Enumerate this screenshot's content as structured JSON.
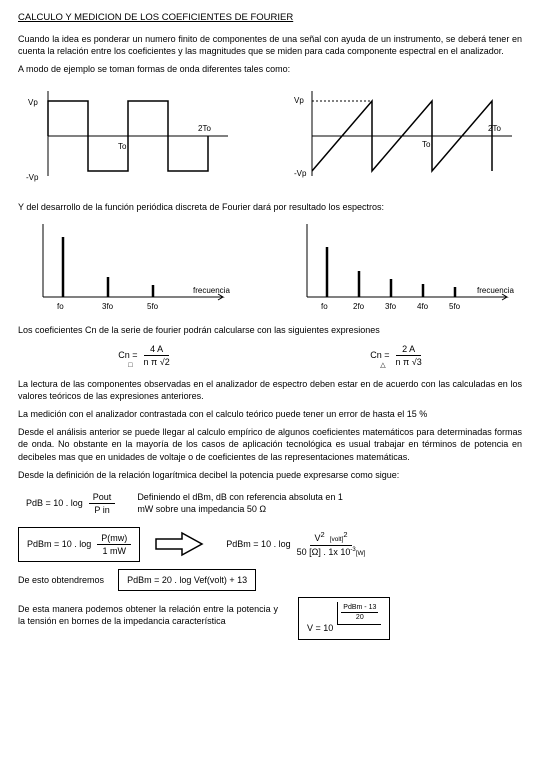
{
  "title": "CALCULO Y MEDICION DE LOS COEFICIENTES DE FOURIER",
  "intro": "Cuando la idea es ponderar un numero finito de componentes de una señal con ayuda de un instrumento, se deberá tener en cuenta la relación entre los coeficientes y las magnitudes que se miden para cada componente espectral en el analizador.",
  "intro2": "A modo de ejemplo se toman formas de onda diferentes tales como:",
  "wave": {
    "vp": "Vp",
    "nvp": "-Vp",
    "to": "To",
    "tto": "2To"
  },
  "p2": "Y del desarrollo de la función periódica discreta de Fourier dará por resultado los espectros:",
  "spec": {
    "freq": "frecuencia",
    "left_ticks": [
      "fo",
      "3fo",
      "5fo"
    ],
    "right_ticks": [
      "fo",
      "2fo",
      "3fo",
      "4fo",
      "5fo"
    ],
    "left_heights": [
      60,
      20,
      12
    ],
    "right_heights": [
      50,
      26,
      18,
      13,
      10
    ]
  },
  "p3": "Los coeficientes Cn de la serie de fourier podrán calcularse con las siguientes expresiones",
  "eq1": {
    "lhs": "Cn =",
    "num": "4 A",
    "den": "n π √2",
    "sub": "□",
    "root": "'"
  },
  "eq2": {
    "lhs": "Cn =",
    "num": "2 A",
    "den": "n π √3",
    "sub": "△",
    "root": "'"
  },
  "p4": "La lectura de las componentes observadas en el analizador de espectro deben estar en de acuerdo con las calculadas en los valores teóricos de las expresiones anteriores.",
  "p5": "La medición con el analizador contrastada con el calculo teórico puede tener un error de hasta el 15 %",
  "p6": "Desde el análisis anterior se puede llegar al calculo empírico de algunos coeficientes matemáticos para determinadas formas de onda. No obstante en la mayoría de los casos de aplicación tecnológica es usual trabajar en términos de potencia en decibeles mas que en unidades de voltaje o de coeficientes de las representaciones matemáticas.",
  "p7": "Desde la definición de la relación logarítmica decibel la potencia puede expresarse como sigue:",
  "f_pdb": {
    "lhs": "PdB = 10 . log",
    "num": "Pout",
    "den": "P in"
  },
  "def_dbm": "Definiendo el dBm, dB con referencia absoluta en 1 mW sobre una impedancia 50 Ω",
  "f_pdbm": {
    "lhs": "PdBm = 10 . log",
    "num": "P(mw)",
    "den": "1 mW"
  },
  "f_vform": {
    "lhs": "PdBm = 10 . log",
    "numL": "V",
    "sup": "2",
    "unitT": "[volt]",
    "denL": "50 [Ω] . 1x 10",
    "denExp": "3",
    "denUnit": "[W]"
  },
  "p8": "De esto obtendremos",
  "f_result": "PdBm = 20 . log  Vef(volt)  + 13",
  "p9": "De esta manera podemos obtener la relación entre la potencia y la tensión en bornes de la impedancia característica",
  "f_final": {
    "lhs": "V  =   10",
    "num": "PdBm - 13",
    "den": "20"
  }
}
